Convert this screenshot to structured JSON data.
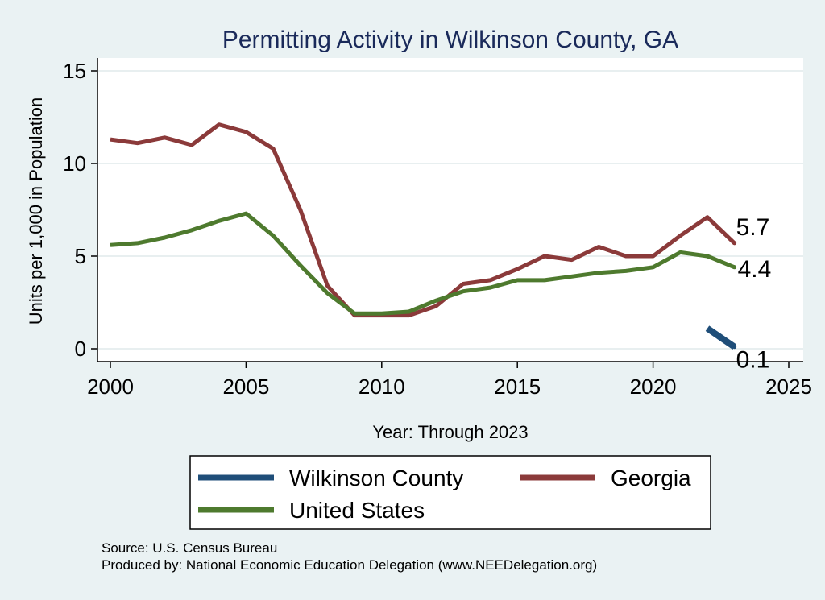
{
  "chart_data": {
    "type": "line",
    "title": "Permitting Activity in Wilkinson County, GA",
    "xlabel": "Year: Through 2023",
    "ylabel": "Units per 1,000 in Population",
    "xlim": [
      2000,
      2025
    ],
    "ylim": [
      0,
      15
    ],
    "x_ticks": [
      2000,
      2005,
      2010,
      2015,
      2020,
      2025
    ],
    "y_ticks": [
      0,
      5,
      10,
      15
    ],
    "grid": true,
    "legend_position": "bottom",
    "series": [
      {
        "name": "Wilkinson County",
        "color": "#1f4e79",
        "x": [
          2022,
          2023
        ],
        "values": [
          1.1,
          0.1
        ],
        "end_label": "0.1"
      },
      {
        "name": "Georgia",
        "color": "#8b3a3a",
        "x": [
          2000,
          2001,
          2002,
          2003,
          2004,
          2005,
          2006,
          2007,
          2008,
          2009,
          2010,
          2011,
          2012,
          2013,
          2014,
          2015,
          2016,
          2017,
          2018,
          2019,
          2020,
          2021,
          2022,
          2023
        ],
        "values": [
          11.3,
          11.1,
          11.4,
          11.0,
          12.1,
          11.7,
          10.8,
          7.5,
          3.4,
          1.8,
          1.8,
          1.8,
          2.3,
          3.5,
          3.7,
          4.3,
          5.0,
          4.8,
          5.5,
          5.0,
          5.0,
          6.1,
          7.1,
          5.7
        ],
        "end_label": "5.7"
      },
      {
        "name": "United States",
        "color": "#4e7a2e",
        "x": [
          2000,
          2001,
          2002,
          2003,
          2004,
          2005,
          2006,
          2007,
          2008,
          2009,
          2010,
          2011,
          2012,
          2013,
          2014,
          2015,
          2016,
          2017,
          2018,
          2019,
          2020,
          2021,
          2022,
          2023
        ],
        "values": [
          5.6,
          5.7,
          6.0,
          6.4,
          6.9,
          7.3,
          6.1,
          4.5,
          3.0,
          1.9,
          1.9,
          2.0,
          2.6,
          3.1,
          3.3,
          3.7,
          3.7,
          3.9,
          4.1,
          4.2,
          4.4,
          5.2,
          5.0,
          4.4
        ],
        "end_label": "4.4"
      }
    ]
  },
  "footer": {
    "source": "Source: U.S. Census Bureau",
    "produced_by": "Produced by: National Economic Education Delegation (www.NEEDelegation.org)"
  }
}
